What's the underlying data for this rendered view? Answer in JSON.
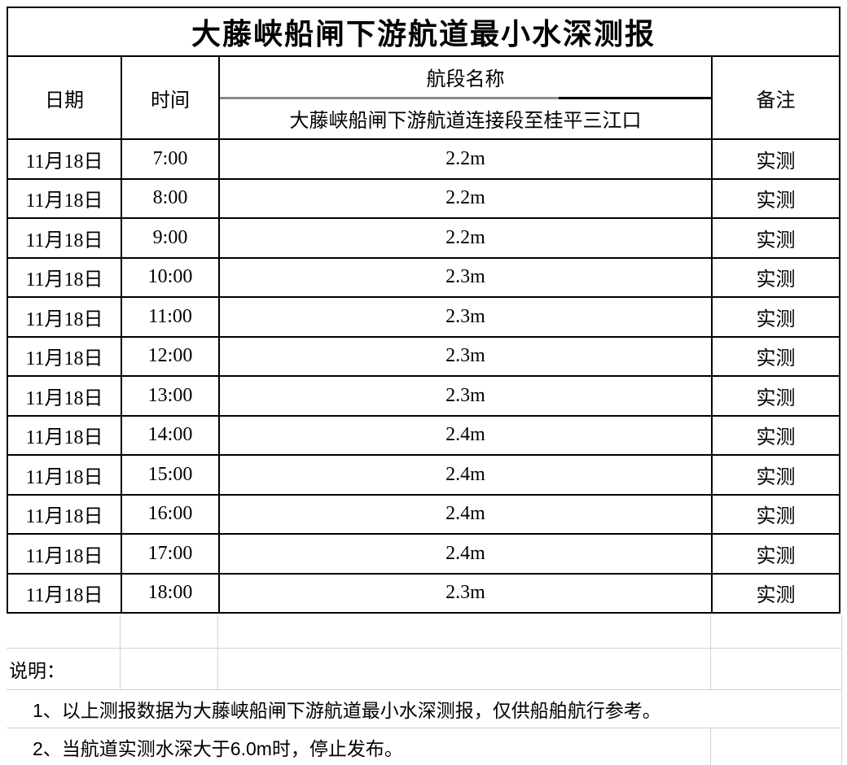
{
  "title": "大藤峡船闸下游航道最小水深测报",
  "table": {
    "headers": {
      "date": "日期",
      "time": "时间",
      "segment": "航段名称",
      "segment_sub": "大藤峡船闸下游航道连接段至桂平三江口",
      "remark": "备注"
    },
    "rows": [
      {
        "date": "11月18日",
        "time": "7:00",
        "depth": "2.2m",
        "remark": "实测"
      },
      {
        "date": "11月18日",
        "time": "8:00",
        "depth": "2.2m",
        "remark": "实测"
      },
      {
        "date": "11月18日",
        "time": "9:00",
        "depth": "2.2m",
        "remark": "实测"
      },
      {
        "date": "11月18日",
        "time": "10:00",
        "depth": "2.3m",
        "remark": "实测"
      },
      {
        "date": "11月18日",
        "time": "11:00",
        "depth": "2.3m",
        "remark": "实测"
      },
      {
        "date": "11月18日",
        "time": "12:00",
        "depth": "2.3m",
        "remark": "实测"
      },
      {
        "date": "11月18日",
        "time": "13:00",
        "depth": "2.3m",
        "remark": "实测"
      },
      {
        "date": "11月18日",
        "time": "14:00",
        "depth": "2.4m",
        "remark": "实测"
      },
      {
        "date": "11月18日",
        "time": "15:00",
        "depth": "2.4m",
        "remark": "实测"
      },
      {
        "date": "11月18日",
        "time": "16:00",
        "depth": "2.4m",
        "remark": "实测"
      },
      {
        "date": "11月18日",
        "time": "17:00",
        "depth": "2.4m",
        "remark": "实测"
      },
      {
        "date": "11月18日",
        "time": "18:00",
        "depth": "2.3m",
        "remark": "实测"
      }
    ]
  },
  "notes": {
    "label": "说明：",
    "items": [
      "1、以上测报数据为大藤峡船闸下游航道最小水深测报，仅供船舶航行参考。",
      "2、当航道实测水深大于6.0m时，停止发布。"
    ]
  },
  "colors": {
    "border": "#000000",
    "gridline": "#d2d2d2",
    "divider_gray": "#8a8a8a",
    "text": "#000000",
    "background": "#ffffff"
  }
}
